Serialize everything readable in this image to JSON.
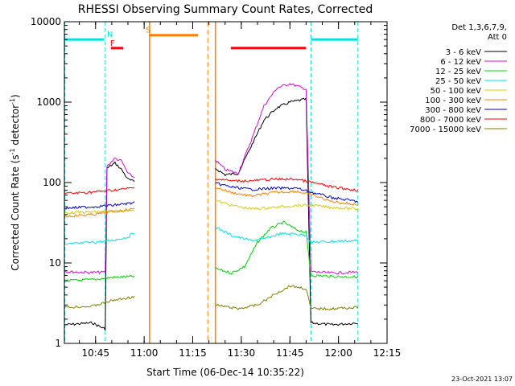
{
  "chart_data": {
    "type": "line",
    "title": "RHESSI Observing Summary Count Rates, Corrected",
    "xlabel": "Start Time (06-Dec-14 10:35:22)",
    "ylabel": "Corrected Count Rate (s⁻¹ detector⁻¹)",
    "ylabel_main": "Corrected Count Rate (s",
    "ylabel_sup1": "-1",
    "ylabel_mid": " detector",
    "ylabel_sup2": "-1",
    "ylabel_end": ")",
    "xlim": [
      "10:35:22",
      "12:15:00"
    ],
    "ylim": [
      1,
      10000
    ],
    "yscale": "log",
    "x_ticks": [
      "10:45",
      "11:00",
      "11:15",
      "11:30",
      "11:45",
      "12:00",
      "12:15"
    ],
    "y_ticks": [
      {
        "value": 1,
        "label": "1"
      },
      {
        "value": 10,
        "label": "10"
      },
      {
        "value": 100,
        "label": "100"
      },
      {
        "value": 1000,
        "label": "1000"
      },
      {
        "value": 10000,
        "label": "10000"
      }
    ],
    "legend_header": [
      "Det 1,3,6,7,9,",
      "Att 0"
    ],
    "legend_placement": "right",
    "series": [
      {
        "name": "3 - 6 keV",
        "color": "#000000",
        "points": [
          [
            "10:35:30",
            1.7
          ],
          [
            "10:44:00",
            1.8
          ],
          [
            "10:48:00",
            1.5
          ],
          [
            "10:48:30",
            150
          ],
          [
            "10:51:00",
            175
          ],
          [
            "10:53:00",
            145
          ],
          [
            "10:55:00",
            110
          ],
          [
            "10:57:00",
            102
          ],
          [
            "11:22:00",
            150
          ],
          [
            "11:25:00",
            125
          ],
          [
            "11:29:00",
            130
          ],
          [
            "11:33:00",
            280
          ],
          [
            "11:37:00",
            600
          ],
          [
            "11:41:00",
            850
          ],
          [
            "11:45:00",
            1000
          ],
          [
            "11:50:00",
            1090
          ],
          [
            "11:51:30",
            1.8
          ],
          [
            "11:58:00",
            1.7
          ],
          [
            "12:06:00",
            1.8
          ]
        ]
      },
      {
        "name": "6 - 12 keV",
        "color": "#d010d0",
        "points": [
          [
            "10:35:30",
            7.8
          ],
          [
            "10:44:00",
            7.6
          ],
          [
            "10:48:00",
            7.7
          ],
          [
            "10:48:30",
            160
          ],
          [
            "10:51:00",
            200
          ],
          [
            "10:53:00",
            185
          ],
          [
            "10:55:00",
            130
          ],
          [
            "10:57:00",
            115
          ],
          [
            "11:22:00",
            190
          ],
          [
            "11:25:00",
            145
          ],
          [
            "11:29:00",
            130
          ],
          [
            "11:33:00",
            330
          ],
          [
            "11:37:00",
            900
          ],
          [
            "11:41:00",
            1500
          ],
          [
            "11:45:00",
            1700
          ],
          [
            "11:50:00",
            1450
          ],
          [
            "11:51:30",
            7.8
          ],
          [
            "11:58:00",
            7.5
          ],
          [
            "12:06:00",
            7.7
          ]
        ]
      },
      {
        "name": "12 - 25 keV",
        "color": "#00d000",
        "points": [
          [
            "10:35:30",
            6.0
          ],
          [
            "10:44:00",
            6.2
          ],
          [
            "10:50:00",
            6.6
          ],
          [
            "10:57:00",
            6.8
          ],
          [
            "11:22:00",
            8.5
          ],
          [
            "11:27:00",
            7.5
          ],
          [
            "11:31:00",
            9.0
          ],
          [
            "11:35:00",
            18
          ],
          [
            "11:39:00",
            27
          ],
          [
            "11:43:00",
            32
          ],
          [
            "11:47:00",
            26
          ],
          [
            "11:50:00",
            24
          ],
          [
            "11:51:30",
            7.0
          ],
          [
            "11:58:00",
            6.8
          ],
          [
            "12:06:00",
            6.7
          ]
        ]
      },
      {
        "name": "25 - 50 keV",
        "color": "#00e0e0",
        "points": [
          [
            "10:35:30",
            17
          ],
          [
            "10:44:00",
            18
          ],
          [
            "10:50:00",
            19
          ],
          [
            "10:55:00",
            21
          ],
          [
            "10:57:00",
            24
          ],
          [
            "11:22:00",
            28
          ],
          [
            "11:27:00",
            22
          ],
          [
            "11:33:00",
            19
          ],
          [
            "11:37:00",
            20
          ],
          [
            "11:42:00",
            23
          ],
          [
            "11:47:00",
            23
          ],
          [
            "11:50:00",
            22
          ],
          [
            "11:51:30",
            18
          ],
          [
            "11:58:00",
            18.5
          ],
          [
            "12:06:00",
            19
          ]
        ]
      },
      {
        "name": "50 - 100 keV",
        "color": "#d0d000",
        "points": [
          [
            "10:35:30",
            42
          ],
          [
            "10:44:00",
            43
          ],
          [
            "10:50:00",
            44
          ],
          [
            "10:57:00",
            46
          ],
          [
            "11:22:00",
            60
          ],
          [
            "11:27:00",
            52
          ],
          [
            "11:33:00",
            47
          ],
          [
            "11:40:00",
            49
          ],
          [
            "11:47:00",
            52
          ],
          [
            "11:52:00",
            52
          ],
          [
            "11:58:00",
            49
          ],
          [
            "12:06:00",
            47
          ]
        ]
      },
      {
        "name": "100 - 300 keV",
        "color": "#ff8000",
        "points": [
          [
            "10:35:30",
            38
          ],
          [
            "10:44:00",
            40
          ],
          [
            "10:50:00",
            43
          ],
          [
            "10:57:00",
            47
          ],
          [
            "11:22:00",
            88
          ],
          [
            "11:27:00",
            75
          ],
          [
            "11:33:00",
            68
          ],
          [
            "11:40:00",
            75
          ],
          [
            "11:47:00",
            78
          ],
          [
            "11:52:00",
            70
          ],
          [
            "11:58:00",
            58
          ],
          [
            "12:06:00",
            53
          ]
        ]
      },
      {
        "name": "300 - 800 keV",
        "color": "#0000d0",
        "points": [
          [
            "10:35:30",
            48
          ],
          [
            "10:44:00",
            50
          ],
          [
            "10:50:00",
            52
          ],
          [
            "10:57:00",
            56
          ],
          [
            "11:22:00",
            98
          ],
          [
            "11:27:00",
            88
          ],
          [
            "11:33:00",
            82
          ],
          [
            "11:40:00",
            85
          ],
          [
            "11:47:00",
            85
          ],
          [
            "11:52:00",
            75
          ],
          [
            "11:58:00",
            65
          ],
          [
            "12:06:00",
            58
          ]
        ]
      },
      {
        "name": "800 - 7000 keV",
        "color": "#ff0000",
        "points": [
          [
            "10:35:30",
            73
          ],
          [
            "10:44:00",
            76
          ],
          [
            "10:50:00",
            80
          ],
          [
            "10:57:00",
            86
          ],
          [
            "11:22:00",
            112
          ],
          [
            "11:27:00",
            105
          ],
          [
            "11:33:00",
            105
          ],
          [
            "11:40:00",
            110
          ],
          [
            "11:47:00",
            110
          ],
          [
            "11:52:00",
            100
          ],
          [
            "11:58:00",
            88
          ],
          [
            "12:06:00",
            80
          ]
        ]
      },
      {
        "name": "7000 - 15000 keV",
        "color": "#808000",
        "points": [
          [
            "10:35:30",
            2.8
          ],
          [
            "10:44:00",
            2.9
          ],
          [
            "10:50:00",
            3.4
          ],
          [
            "10:57:00",
            3.8
          ],
          [
            "11:22:00",
            3.0
          ],
          [
            "11:29:00",
            2.7
          ],
          [
            "11:35:00",
            3.0
          ],
          [
            "11:40:00",
            4.0
          ],
          [
            "11:45:00",
            5.2
          ],
          [
            "11:50:00",
            4.8
          ],
          [
            "11:51:30",
            2.7
          ],
          [
            "11:58:00",
            2.7
          ],
          [
            "12:06:00",
            2.8
          ]
        ]
      }
    ],
    "annotations": {
      "flags": [
        {
          "letter": "N",
          "color": "#00e0e0",
          "label_at": "10:48:30",
          "bars": [
            [
              "10:35:30",
              "10:47:40"
            ],
            [
              "11:51:30",
              "12:06:00"
            ]
          ],
          "level": 6000,
          "vlines": [
            "10:35:30",
            "10:48:00",
            "11:51:30",
            "12:06:00"
          ]
        },
        {
          "letter": "S",
          "color": "#ff8000",
          "label_at": "11:00:30",
          "bars": [
            [
              "11:01:40",
              "11:16:40"
            ]
          ],
          "level": 6800,
          "vlines_solid": [
            "11:01:40",
            "11:22:00"
          ],
          "vlines_dashed": [
            "11:19:40"
          ]
        },
        {
          "letter": "F",
          "color": "#ff0000",
          "label_at": "10:49:30",
          "bars": [
            [
              "10:49:45",
              "10:53:30"
            ],
            [
              "11:26:45",
              "11:50:00"
            ]
          ],
          "level": 4700
        }
      ]
    },
    "footer_date": "23-Oct-2021 13:07"
  }
}
